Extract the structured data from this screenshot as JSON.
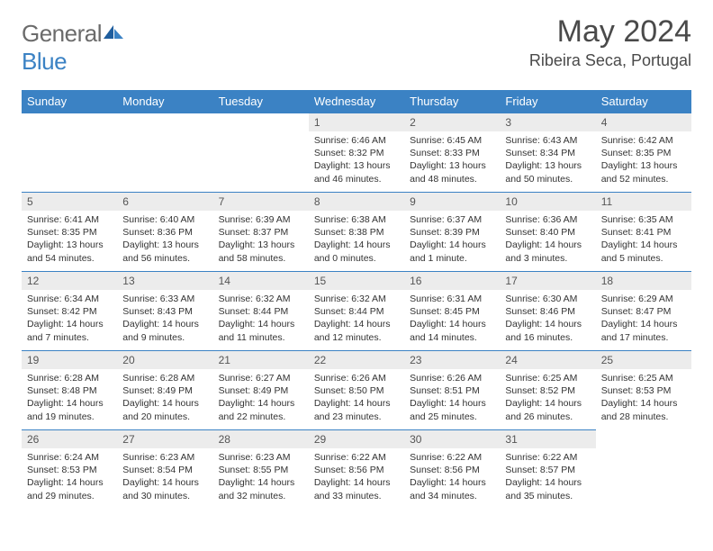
{
  "logo": {
    "general": "General",
    "blue": "Blue"
  },
  "title": "May 2024",
  "location": "Ribeira Seca, Portugal",
  "colors": {
    "header_bg": "#3b82c4",
    "header_text": "#ffffff",
    "daynum_bg": "#ececec",
    "rule": "#3b82c4",
    "title_color": "#4a4a4a"
  },
  "weekdays": [
    "Sunday",
    "Monday",
    "Tuesday",
    "Wednesday",
    "Thursday",
    "Friday",
    "Saturday"
  ],
  "weeks": [
    [
      null,
      null,
      null,
      {
        "n": "1",
        "sr": "Sunrise: 6:46 AM",
        "ss": "Sunset: 8:32 PM",
        "d1": "Daylight: 13 hours",
        "d2": "and 46 minutes."
      },
      {
        "n": "2",
        "sr": "Sunrise: 6:45 AM",
        "ss": "Sunset: 8:33 PM",
        "d1": "Daylight: 13 hours",
        "d2": "and 48 minutes."
      },
      {
        "n": "3",
        "sr": "Sunrise: 6:43 AM",
        "ss": "Sunset: 8:34 PM",
        "d1": "Daylight: 13 hours",
        "d2": "and 50 minutes."
      },
      {
        "n": "4",
        "sr": "Sunrise: 6:42 AM",
        "ss": "Sunset: 8:35 PM",
        "d1": "Daylight: 13 hours",
        "d2": "and 52 minutes."
      }
    ],
    [
      {
        "n": "5",
        "sr": "Sunrise: 6:41 AM",
        "ss": "Sunset: 8:35 PM",
        "d1": "Daylight: 13 hours",
        "d2": "and 54 minutes."
      },
      {
        "n": "6",
        "sr": "Sunrise: 6:40 AM",
        "ss": "Sunset: 8:36 PM",
        "d1": "Daylight: 13 hours",
        "d2": "and 56 minutes."
      },
      {
        "n": "7",
        "sr": "Sunrise: 6:39 AM",
        "ss": "Sunset: 8:37 PM",
        "d1": "Daylight: 13 hours",
        "d2": "and 58 minutes."
      },
      {
        "n": "8",
        "sr": "Sunrise: 6:38 AM",
        "ss": "Sunset: 8:38 PM",
        "d1": "Daylight: 14 hours",
        "d2": "and 0 minutes."
      },
      {
        "n": "9",
        "sr": "Sunrise: 6:37 AM",
        "ss": "Sunset: 8:39 PM",
        "d1": "Daylight: 14 hours",
        "d2": "and 1 minute."
      },
      {
        "n": "10",
        "sr": "Sunrise: 6:36 AM",
        "ss": "Sunset: 8:40 PM",
        "d1": "Daylight: 14 hours",
        "d2": "and 3 minutes."
      },
      {
        "n": "11",
        "sr": "Sunrise: 6:35 AM",
        "ss": "Sunset: 8:41 PM",
        "d1": "Daylight: 14 hours",
        "d2": "and 5 minutes."
      }
    ],
    [
      {
        "n": "12",
        "sr": "Sunrise: 6:34 AM",
        "ss": "Sunset: 8:42 PM",
        "d1": "Daylight: 14 hours",
        "d2": "and 7 minutes."
      },
      {
        "n": "13",
        "sr": "Sunrise: 6:33 AM",
        "ss": "Sunset: 8:43 PM",
        "d1": "Daylight: 14 hours",
        "d2": "and 9 minutes."
      },
      {
        "n": "14",
        "sr": "Sunrise: 6:32 AM",
        "ss": "Sunset: 8:44 PM",
        "d1": "Daylight: 14 hours",
        "d2": "and 11 minutes."
      },
      {
        "n": "15",
        "sr": "Sunrise: 6:32 AM",
        "ss": "Sunset: 8:44 PM",
        "d1": "Daylight: 14 hours",
        "d2": "and 12 minutes."
      },
      {
        "n": "16",
        "sr": "Sunrise: 6:31 AM",
        "ss": "Sunset: 8:45 PM",
        "d1": "Daylight: 14 hours",
        "d2": "and 14 minutes."
      },
      {
        "n": "17",
        "sr": "Sunrise: 6:30 AM",
        "ss": "Sunset: 8:46 PM",
        "d1": "Daylight: 14 hours",
        "d2": "and 16 minutes."
      },
      {
        "n": "18",
        "sr": "Sunrise: 6:29 AM",
        "ss": "Sunset: 8:47 PM",
        "d1": "Daylight: 14 hours",
        "d2": "and 17 minutes."
      }
    ],
    [
      {
        "n": "19",
        "sr": "Sunrise: 6:28 AM",
        "ss": "Sunset: 8:48 PM",
        "d1": "Daylight: 14 hours",
        "d2": "and 19 minutes."
      },
      {
        "n": "20",
        "sr": "Sunrise: 6:28 AM",
        "ss": "Sunset: 8:49 PM",
        "d1": "Daylight: 14 hours",
        "d2": "and 20 minutes."
      },
      {
        "n": "21",
        "sr": "Sunrise: 6:27 AM",
        "ss": "Sunset: 8:49 PM",
        "d1": "Daylight: 14 hours",
        "d2": "and 22 minutes."
      },
      {
        "n": "22",
        "sr": "Sunrise: 6:26 AM",
        "ss": "Sunset: 8:50 PM",
        "d1": "Daylight: 14 hours",
        "d2": "and 23 minutes."
      },
      {
        "n": "23",
        "sr": "Sunrise: 6:26 AM",
        "ss": "Sunset: 8:51 PM",
        "d1": "Daylight: 14 hours",
        "d2": "and 25 minutes."
      },
      {
        "n": "24",
        "sr": "Sunrise: 6:25 AM",
        "ss": "Sunset: 8:52 PM",
        "d1": "Daylight: 14 hours",
        "d2": "and 26 minutes."
      },
      {
        "n": "25",
        "sr": "Sunrise: 6:25 AM",
        "ss": "Sunset: 8:53 PM",
        "d1": "Daylight: 14 hours",
        "d2": "and 28 minutes."
      }
    ],
    [
      {
        "n": "26",
        "sr": "Sunrise: 6:24 AM",
        "ss": "Sunset: 8:53 PM",
        "d1": "Daylight: 14 hours",
        "d2": "and 29 minutes."
      },
      {
        "n": "27",
        "sr": "Sunrise: 6:23 AM",
        "ss": "Sunset: 8:54 PM",
        "d1": "Daylight: 14 hours",
        "d2": "and 30 minutes."
      },
      {
        "n": "28",
        "sr": "Sunrise: 6:23 AM",
        "ss": "Sunset: 8:55 PM",
        "d1": "Daylight: 14 hours",
        "d2": "and 32 minutes."
      },
      {
        "n": "29",
        "sr": "Sunrise: 6:22 AM",
        "ss": "Sunset: 8:56 PM",
        "d1": "Daylight: 14 hours",
        "d2": "and 33 minutes."
      },
      {
        "n": "30",
        "sr": "Sunrise: 6:22 AM",
        "ss": "Sunset: 8:56 PM",
        "d1": "Daylight: 14 hours",
        "d2": "and 34 minutes."
      },
      {
        "n": "31",
        "sr": "Sunrise: 6:22 AM",
        "ss": "Sunset: 8:57 PM",
        "d1": "Daylight: 14 hours",
        "d2": "and 35 minutes."
      },
      null
    ]
  ]
}
